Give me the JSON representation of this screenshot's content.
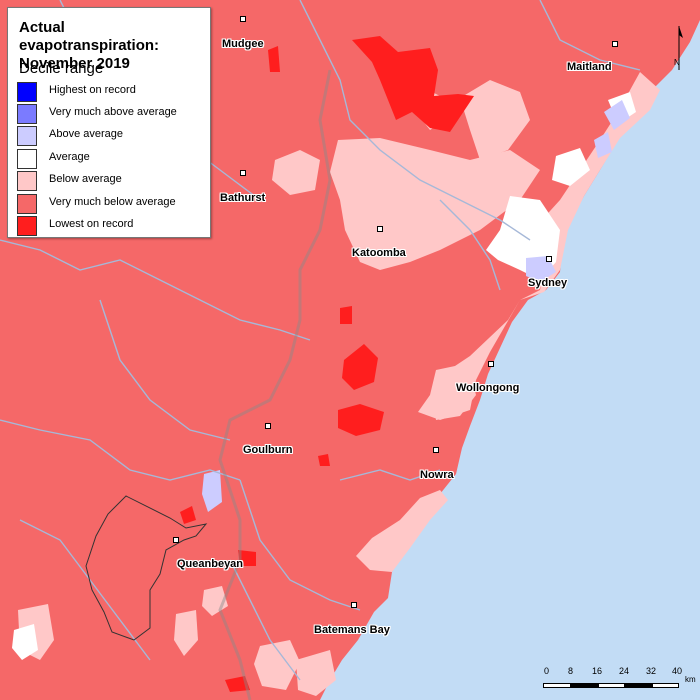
{
  "legend": {
    "title_line1": "Actual evapotranspiration:",
    "title_line2": "November 2019",
    "subtitle": "Decile range",
    "items": [
      {
        "label": "Highest on record",
        "color": "#0000ff"
      },
      {
        "label": "Very much above average",
        "color": "#7b7bff"
      },
      {
        "label": "Above average",
        "color": "#ccccff"
      },
      {
        "label": "Average",
        "color": "#ffffff"
      },
      {
        "label": "Below average",
        "color": "#ffc8c8"
      },
      {
        "label": "Very much below average",
        "color": "#f56868"
      },
      {
        "label": "Lowest on record",
        "color": "#ff1e1e"
      }
    ]
  },
  "places": [
    {
      "name": "Mudgee"
    },
    {
      "name": "Maitland"
    },
    {
      "name": "Bathurst"
    },
    {
      "name": "Katoomba"
    },
    {
      "name": "Sydney"
    },
    {
      "name": "Wollongong"
    },
    {
      "name": "Goulburn"
    },
    {
      "name": "Nowra"
    },
    {
      "name": "Queanbeyan"
    },
    {
      "name": "Batemans Bay"
    }
  ],
  "north_arrow": {
    "letter": "N"
  },
  "scale_bar": {
    "ticks": [
      "0",
      "8",
      "16",
      "24",
      "32",
      "40"
    ],
    "unit": "km"
  },
  "colors": {
    "ocean": "#c2dcf5",
    "river": "#a6b8d8",
    "boundary": "#333333"
  }
}
